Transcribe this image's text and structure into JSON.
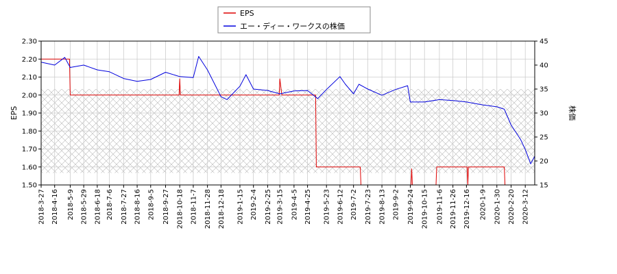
{
  "chart_data": {
    "type": "line",
    "legend": {
      "placement": "top-center",
      "entries": [
        {
          "label": "EPS",
          "color": "#dd0000"
        },
        {
          "label": "エー・ディー・ワークスの株価",
          "color": "#0000dd"
        }
      ]
    },
    "ylabel_left": "EPS",
    "ylabel_right": "株価",
    "ylim_left": [
      1.5,
      2.3
    ],
    "ylim_right": [
      15,
      45
    ],
    "yticks_left": [
      "1.50",
      "1.60",
      "1.70",
      "1.80",
      "1.90",
      "2.00",
      "2.10",
      "2.20",
      "2.30"
    ],
    "yticks_right": [
      "15",
      "20",
      "25",
      "30",
      "35",
      "40",
      "45"
    ],
    "xlim": [
      "2018-03-27",
      "2020-03-26"
    ],
    "xticks": [
      "2018-3-27",
      "2018-4-16",
      "2018-5-9",
      "2018-5-29",
      "2018-6-18",
      "2018-7-6",
      "2018-7-27",
      "2018-8-16",
      "2018-9-5",
      "2018-9-27",
      "2018-10-18",
      "2018-11-7",
      "2018-11-28",
      "2018-12-18",
      "2019-1-15",
      "2019-2-4",
      "2019-2-25",
      "2019-3-15",
      "2019-4-5",
      "2019-4-25",
      "2019-5-23",
      "2019-6-12",
      "2019-7-2",
      "2019-7-23",
      "2019-8-13",
      "2019-9-2",
      "2019-9-24",
      "2019-10-15",
      "2019-11-6",
      "2019-11-26",
      "2019-12-16",
      "2020-1-9",
      "2020-1-30",
      "2020-2-20",
      "2020-3-12"
    ],
    "grid": true,
    "shaded_band": {
      "axis": "right",
      "from": 17.5,
      "to": 35.0
    },
    "series": [
      {
        "name": "EPS",
        "axis": "left",
        "color": "#dd0000",
        "step": true,
        "x": [
          "2018-03-27",
          "2018-05-08",
          "2018-05-09",
          "2018-10-17",
          "2018-10-18",
          "2018-10-19",
          "2019-03-14",
          "2019-03-15",
          "2019-03-18",
          "2019-05-07",
          "2019-05-08",
          "2019-07-12",
          "2019-07-13",
          "2019-09-25",
          "2019-09-26",
          "2019-09-27",
          "2019-11-01",
          "2019-11-02",
          "2019-12-17",
          "2019-12-18",
          "2019-12-19",
          "2020-02-10",
          "2020-02-11",
          "2020-03-26"
        ],
        "values": [
          2.2,
          2.2,
          2.0,
          2.0,
          2.09,
          2.0,
          2.0,
          2.09,
          2.0,
          2.0,
          1.6,
          1.6,
          1.5,
          1.5,
          1.59,
          1.5,
          1.5,
          1.6,
          1.6,
          1.5,
          1.6,
          1.6,
          1.5,
          1.5
        ]
      },
      {
        "name": "エー・ディー・ワークスの株価",
        "axis": "right",
        "color": "#0000dd",
        "x": [
          "2018-03-27",
          "2018-04-16",
          "2018-05-01",
          "2018-05-09",
          "2018-05-29",
          "2018-06-18",
          "2018-07-06",
          "2018-07-27",
          "2018-08-16",
          "2018-09-05",
          "2018-09-27",
          "2018-10-18",
          "2018-11-07",
          "2018-11-15",
          "2018-11-28",
          "2018-12-18",
          "2018-12-27",
          "2019-01-15",
          "2019-01-24",
          "2019-02-04",
          "2019-02-25",
          "2019-03-15",
          "2019-04-05",
          "2019-04-25",
          "2019-05-10",
          "2019-05-23",
          "2019-06-12",
          "2019-06-20",
          "2019-07-02",
          "2019-07-10",
          "2019-07-23",
          "2019-08-13",
          "2019-09-02",
          "2019-09-20",
          "2019-09-24",
          "2019-10-15",
          "2019-11-06",
          "2019-11-26",
          "2019-12-16",
          "2020-01-09",
          "2020-01-30",
          "2020-02-10",
          "2020-02-20",
          "2020-03-05",
          "2020-03-12",
          "2020-03-20",
          "2020-03-26"
        ],
        "values": [
          40.6,
          40.0,
          41.6,
          39.5,
          40.0,
          39.0,
          38.6,
          37.2,
          36.6,
          37.0,
          38.5,
          37.6,
          37.4,
          41.8,
          39.0,
          33.4,
          32.8,
          35.6,
          38.0,
          35.0,
          34.7,
          34.0,
          34.6,
          34.7,
          33.0,
          34.9,
          37.6,
          36.0,
          34.0,
          36.0,
          35.0,
          33.7,
          34.9,
          35.7,
          32.3,
          32.3,
          32.8,
          32.6,
          32.3,
          31.7,
          31.3,
          30.8,
          27.5,
          24.5,
          22.4,
          19.4,
          21.0
        ]
      }
    ]
  }
}
